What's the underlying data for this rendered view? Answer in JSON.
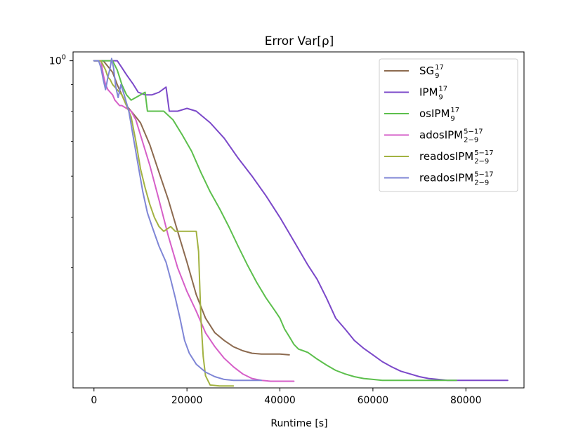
{
  "chart_data": {
    "type": "line",
    "title": "Error Var[ρ]",
    "xlabel": "Runtime [s]",
    "ylabel": "",
    "xlim": [
      -4500,
      92500
    ],
    "ylim": [
      0.235,
      1.04
    ],
    "yscale": "log",
    "x_ticks": [
      0,
      20000,
      40000,
      60000,
      80000
    ],
    "x_tick_labels": [
      "0",
      "20000",
      "40000",
      "60000",
      "80000"
    ],
    "y_major_tick": {
      "value": 1.0,
      "label_base": "10",
      "label_exp": "0"
    },
    "y_minor_ticks": [
      0.3,
      0.4,
      0.5,
      0.6,
      0.7,
      0.8,
      0.9
    ],
    "grid": false,
    "legend_position": "top-right",
    "series": [
      {
        "name": "SG",
        "sub": "9",
        "sup": "17",
        "color": "#8c6a4f",
        "x": [
          0,
          2000,
          3200,
          4000,
          5000,
          6000,
          7000,
          8000,
          9000,
          10000,
          12000,
          14000,
          16000,
          18000,
          20000,
          22000,
          24000,
          26000,
          28000,
          30000,
          32000,
          34000,
          36000,
          38000,
          40000,
          42000
        ],
        "y": [
          1.0,
          1.0,
          0.97,
          0.95,
          0.9,
          0.86,
          0.82,
          0.8,
          0.78,
          0.76,
          0.69,
          0.61,
          0.54,
          0.47,
          0.41,
          0.355,
          0.32,
          0.3,
          0.29,
          0.282,
          0.277,
          0.274,
          0.273,
          0.273,
          0.273,
          0.272
        ]
      },
      {
        "name": "IPM",
        "sub": "9",
        "sup": "17",
        "color": "#7b48c9",
        "x": [
          0,
          2500,
          4000,
          5000,
          6000,
          7000,
          8500,
          9500,
          11000,
          12500,
          14000,
          15500,
          16200,
          18000,
          20000,
          22000,
          25000,
          28000,
          31000,
          34000,
          37000,
          40000,
          43000,
          46000,
          48000,
          50000,
          52000,
          54000,
          56000,
          58000,
          60000,
          62000,
          64000,
          66000,
          68000,
          70000,
          72000,
          74000,
          76000,
          78000,
          80000,
          83000,
          86000,
          89000
        ],
        "y": [
          1.0,
          1.0,
          1.0,
          1.0,
          0.97,
          0.94,
          0.9,
          0.87,
          0.86,
          0.86,
          0.87,
          0.89,
          0.8,
          0.8,
          0.81,
          0.8,
          0.76,
          0.71,
          0.65,
          0.6,
          0.55,
          0.5,
          0.45,
          0.405,
          0.38,
          0.35,
          0.32,
          0.305,
          0.29,
          0.28,
          0.272,
          0.264,
          0.258,
          0.253,
          0.25,
          0.247,
          0.245,
          0.244,
          0.243,
          0.243,
          0.243,
          0.243,
          0.243,
          0.243
        ]
      },
      {
        "name": "osIPM",
        "sub": "9",
        "sup": "17",
        "color": "#5cbf4c",
        "x": [
          0,
          2000,
          4000,
          5000,
          6000,
          7000,
          8000,
          9000,
          10000,
          11000,
          11500,
          13000,
          15000,
          17000,
          19000,
          21000,
          23000,
          25000,
          27000,
          29000,
          31000,
          33000,
          35000,
          37000,
          39000,
          40000,
          41000,
          42000,
          43000,
          44000,
          45000,
          46000,
          48000,
          50000,
          52000,
          54000,
          56000,
          58000,
          60000,
          62000,
          64000,
          66000,
          68000,
          70000,
          72000,
          74000,
          76000,
          78000
        ],
        "y": [
          1.0,
          1.0,
          1.0,
          0.96,
          0.9,
          0.86,
          0.84,
          0.85,
          0.86,
          0.87,
          0.8,
          0.8,
          0.8,
          0.77,
          0.72,
          0.67,
          0.61,
          0.56,
          0.52,
          0.48,
          0.44,
          0.405,
          0.375,
          0.35,
          0.33,
          0.32,
          0.305,
          0.295,
          0.285,
          0.279,
          0.277,
          0.275,
          0.267,
          0.26,
          0.254,
          0.25,
          0.247,
          0.245,
          0.244,
          0.243,
          0.243,
          0.243,
          0.243,
          0.243,
          0.243,
          0.243,
          0.243,
          0.243
        ]
      },
      {
        "name": "adosIPM",
        "sub": "2−9",
        "sup": "5−17",
        "color": "#d65fc8",
        "x": [
          0,
          1500,
          2000,
          2500,
          3000,
          3500,
          4000,
          4500,
          5000,
          5500,
          6000,
          7000,
          8000,
          9000,
          10000,
          12000,
          14000,
          16000,
          18000,
          20000,
          22000,
          24000,
          26000,
          28000,
          30000,
          32000,
          34000,
          36000,
          38000,
          40000,
          43000
        ],
        "y": [
          1.0,
          1.0,
          0.94,
          0.9,
          0.88,
          0.87,
          0.86,
          0.84,
          0.83,
          0.82,
          0.82,
          0.81,
          0.8,
          0.77,
          0.72,
          0.63,
          0.54,
          0.46,
          0.4,
          0.36,
          0.33,
          0.3,
          0.282,
          0.268,
          0.258,
          0.25,
          0.245,
          0.243,
          0.242,
          0.242,
          0.242
        ]
      },
      {
        "name": "readosIPM",
        "sub": "2−9",
        "sup": "5−17",
        "color": "#a2b241",
        "x": [
          0,
          1500,
          2500,
          3000,
          3500,
          4000,
          5000,
          6000,
          7000,
          8000,
          9000,
          10000,
          11000,
          12000,
          13000,
          14000,
          15000,
          16500,
          17500,
          19000,
          20500,
          22000,
          22500,
          23000,
          23500,
          24000,
          25000,
          27000,
          30000
        ],
        "y": [
          1.0,
          1.0,
          0.96,
          0.93,
          0.92,
          0.9,
          0.88,
          0.86,
          0.82,
          0.78,
          0.7,
          0.62,
          0.57,
          0.53,
          0.5,
          0.48,
          0.47,
          0.48,
          0.47,
          0.47,
          0.47,
          0.47,
          0.43,
          0.32,
          0.27,
          0.248,
          0.238,
          0.237,
          0.237
        ]
      },
      {
        "name": "readosIPM",
        "sub": "2−9",
        "sup": "5−17",
        "color": "#7f86d6",
        "x": [
          0,
          1000,
          1500,
          2000,
          2500,
          3000,
          3500,
          3800,
          4200,
          4700,
          5200,
          5800,
          6500,
          7500,
          8500,
          9500,
          10500,
          11500,
          12500,
          14000,
          15500,
          16500,
          17500,
          18500,
          19500,
          20500,
          22000,
          24000,
          26000,
          28000,
          30000,
          33000,
          36000
        ],
        "y": [
          1.0,
          1.0,
          0.97,
          0.92,
          0.88,
          0.93,
          0.97,
          1.01,
          0.97,
          0.89,
          0.85,
          0.9,
          0.86,
          0.8,
          0.71,
          0.63,
          0.56,
          0.51,
          0.48,
          0.44,
          0.41,
          0.38,
          0.35,
          0.32,
          0.29,
          0.274,
          0.261,
          0.252,
          0.247,
          0.244,
          0.243,
          0.243,
          0.243
        ]
      }
    ]
  }
}
